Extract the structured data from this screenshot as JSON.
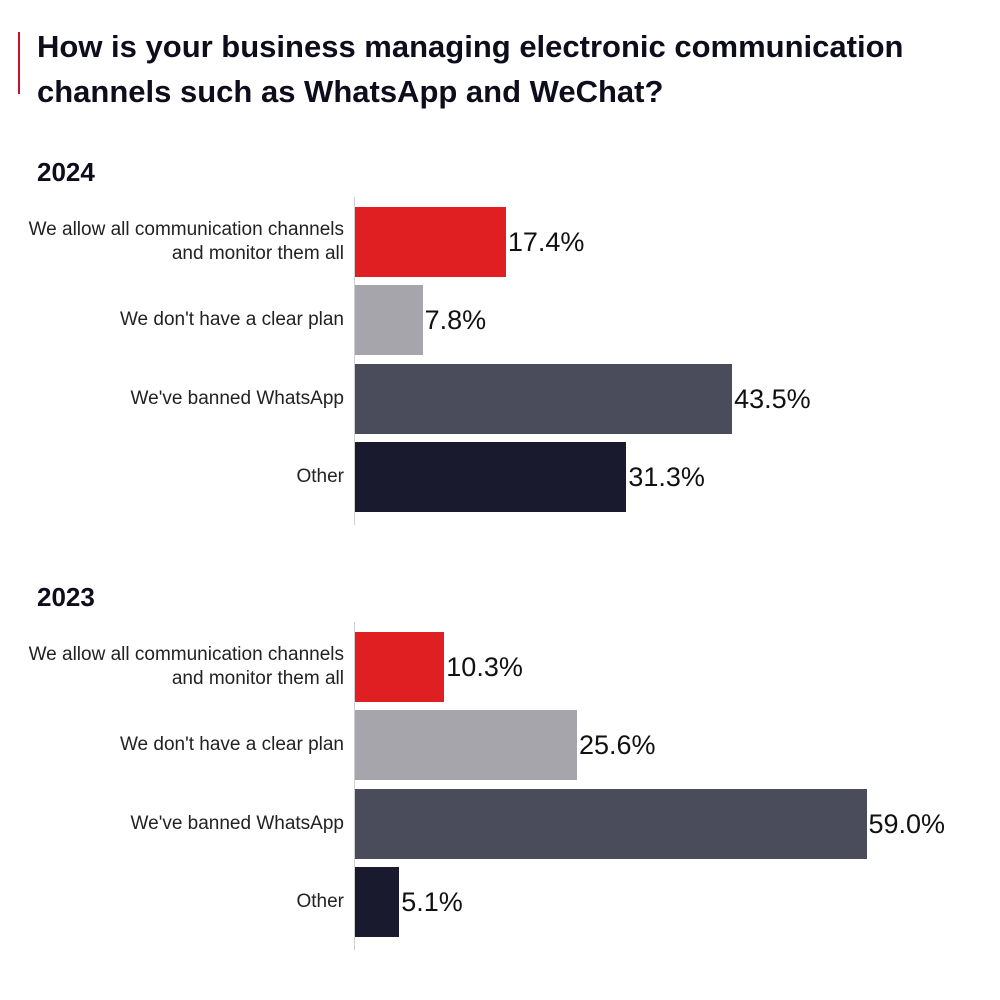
{
  "title": "How is your business managing electronic communication channels such as WhatsApp and WeChat?",
  "colors": {
    "accent": "#c8102e",
    "allow_monitor": "#e01f22",
    "no_plan": "#a5a5ab",
    "banned": "#4a4b5b",
    "other": "#1a1a2e"
  },
  "chart_data": [
    {
      "type": "bar",
      "orientation": "horizontal",
      "title": "2024",
      "categories": [
        "We allow all communication channels and monitor them all",
        "We don't have a clear plan",
        "We've banned WhatsApp",
        "Other"
      ],
      "values": [
        17.4,
        7.8,
        43.5,
        31.3
      ],
      "value_labels": [
        "17.4%",
        "7.8%",
        "43.5%",
        "31.3%"
      ],
      "xlim": [
        0,
        60
      ],
      "grid": false,
      "legend": "none"
    },
    {
      "type": "bar",
      "orientation": "horizontal",
      "title": "2023",
      "categories": [
        "We allow all communication channels and monitor them all",
        "We don't have a clear plan",
        "We've banned WhatsApp",
        "Other"
      ],
      "values": [
        10.3,
        25.6,
        59.0,
        5.1
      ],
      "value_labels": [
        "10.3%",
        "25.6%",
        "59.0%",
        "5.1%"
      ],
      "xlim": [
        0,
        60
      ],
      "grid": false,
      "legend": "none"
    }
  ]
}
